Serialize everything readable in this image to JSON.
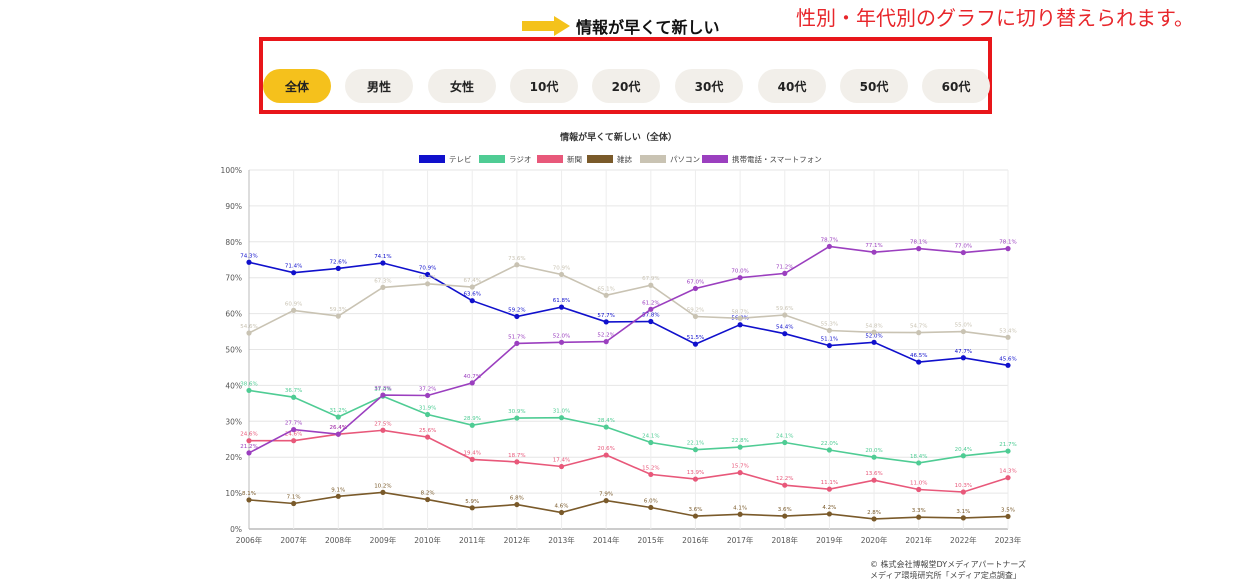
{
  "note": "性別・年代別のグラフに切り替えられます。",
  "heading": "情報が早くて新しい",
  "tabs": [
    "全体",
    "男性",
    "女性",
    "10代",
    "20代",
    "30代",
    "40代",
    "50代",
    "60代"
  ],
  "active_tab": "全体",
  "copyright": [
    "© 株式会社博報堂DYメディアパートナーズ",
    "メディア環境研究所「メディア定点調査」"
  ],
  "colors": {
    "accent": "#f5c11c",
    "frame": "#e8161a",
    "note": "#e8262b"
  },
  "chart_data": {
    "type": "line",
    "title": "情報が早くて新しい（全体）",
    "xlabel": "",
    "ylabel": "",
    "ylim": [
      0,
      100
    ],
    "yticks": [
      "0%",
      "10%",
      "20%",
      "30%",
      "40%",
      "50%",
      "60%",
      "70%",
      "80%",
      "90%",
      "100%"
    ],
    "categories": [
      "2006年",
      "2007年",
      "2008年",
      "2009年",
      "2010年",
      "2011年",
      "2012年",
      "2013年",
      "2014年",
      "2015年",
      "2016年",
      "2017年",
      "2018年",
      "2019年",
      "2020年",
      "2021年",
      "2022年",
      "2023年"
    ],
    "legend_position": "top",
    "series": [
      {
        "name": "テレビ",
        "color": "#1010cc",
        "labels_above": true,
        "values": [
          74.3,
          71.4,
          72.6,
          74.1,
          70.9,
          63.6,
          59.2,
          61.8,
          57.7,
          57.8,
          51.5,
          56.9,
          54.4,
          51.1,
          52.0,
          46.5,
          47.7,
          45.6
        ]
      },
      {
        "name": "ラジオ",
        "color": "#4fcc94",
        "labels_above": true,
        "values": [
          38.6,
          36.7,
          31.2,
          37.0,
          31.9,
          28.9,
          30.9,
          31.0,
          28.4,
          24.1,
          22.1,
          22.8,
          24.1,
          22.0,
          20.0,
          18.4,
          20.4,
          21.7
        ]
      },
      {
        "name": "新聞",
        "color": "#e8587a",
        "labels_above": true,
        "values": [
          24.6,
          24.6,
          26.4,
          27.5,
          25.6,
          19.4,
          18.7,
          17.4,
          20.6,
          15.2,
          13.9,
          15.7,
          12.2,
          11.1,
          13.6,
          11.0,
          10.3,
          14.3
        ]
      },
      {
        "name": "雑誌",
        "color": "#7a5a2a",
        "labels_above": true,
        "values": [
          8.1,
          7.1,
          9.1,
          10.2,
          8.2,
          5.9,
          6.8,
          4.6,
          7.9,
          6.0,
          3.6,
          4.1,
          3.6,
          4.2,
          2.8,
          3.3,
          3.1,
          3.5
        ]
      },
      {
        "name": "パソコン",
        "color": "#c9c3b3",
        "labels_above": true,
        "values": [
          54.6,
          60.9,
          59.3,
          67.3,
          68.3,
          67.4,
          73.6,
          70.9,
          65.1,
          67.9,
          59.2,
          58.7,
          59.6,
          55.3,
          54.8,
          54.7,
          55.0,
          53.4
        ]
      },
      {
        "name": "携帯電話・スマートフォン",
        "color": "#9b3fbf",
        "labels_above": true,
        "values": [
          21.2,
          27.7,
          26.4,
          37.3,
          37.2,
          40.7,
          51.7,
          52.0,
          52.2,
          61.2,
          67.0,
          70.0,
          71.2,
          78.7,
          77.1,
          78.1,
          77.0,
          78.1
        ]
      }
    ]
  }
}
